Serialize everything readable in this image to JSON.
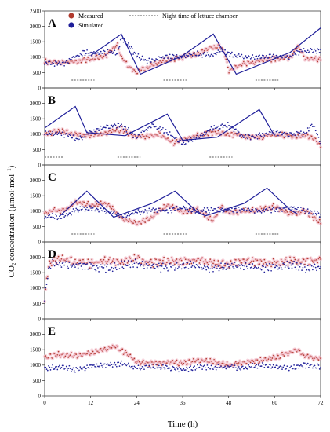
{
  "colors": {
    "measured": "#b03a2e",
    "measured_band": "#f3b8c7",
    "simulated": "#1f1f9a",
    "night_bar": "#555555",
    "frame": "#333333"
  },
  "legend": {
    "measured": "Measured",
    "simulated": "Simulated",
    "night": "Night time of lettuce chamber"
  },
  "axes": {
    "xlabel": "Time (h)",
    "ylabel_pre": "CO",
    "ylabel_sub": "2",
    "ylabel_mid": " concentration (μmol·mol",
    "ylabel_sup": "−1",
    "ylabel_post": ")"
  },
  "chart_data": {
    "type": "line",
    "xlim": [
      0,
      72
    ],
    "ylim": [
      0,
      2500
    ],
    "x_ticks": [
      "0",
      "12",
      "24",
      "36",
      "48",
      "60",
      "72"
    ],
    "y_ticks": [
      "0",
      "500",
      "1000",
      "1500",
      "2000",
      "2500"
    ],
    "panels": [
      {
        "label": "A",
        "night_periods": [
          [
            7,
            13
          ],
          [
            31,
            37
          ],
          [
            55,
            61
          ]
        ],
        "series": [
          {
            "name": "Measured",
            "style": "dots",
            "x": [
              0,
              4,
              8,
              12,
              16,
              19,
              20,
              22,
              24,
              28,
              32,
              36,
              40,
              42,
              44,
              46,
              47,
              48,
              50,
              56,
              60,
              64,
              66,
              68,
              72
            ],
            "y": [
              850,
              820,
              850,
              950,
              1050,
              1400,
              1000,
              700,
              500,
              750,
              900,
              1000,
              1100,
              1250,
              1300,
              1350,
              1100,
              550,
              700,
              900,
              950,
              1000,
              1350,
              950,
              900
            ]
          },
          {
            "name": "Simulated",
            "style": "dots",
            "x": [
              0,
              5,
              7,
              10,
              14,
              17,
              19,
              20,
              24,
              26,
              28,
              32,
              36,
              40,
              44,
              46,
              48,
              52,
              56,
              60,
              64,
              66,
              68,
              72
            ],
            "y": [
              800,
              780,
              950,
              1150,
              1100,
              1200,
              1100,
              1650,
              1050,
              900,
              900,
              1000,
              1050,
              1100,
              1050,
              1200,
              1100,
              1000,
              1000,
              1050,
              1000,
              1150,
              1200,
              1200
            ]
          },
          {
            "name": "Simulated",
            "style": "line",
            "x": [
              12,
              20,
              25,
              36,
              44,
              50,
              64,
              72
            ],
            "y": [
              1050,
              1750,
              450,
              1050,
              1750,
              450,
              1150,
              1950
            ]
          }
        ]
      },
      {
        "label": "B",
        "night_periods": [
          [
            0,
            5
          ],
          [
            19,
            25
          ],
          [
            43,
            49
          ]
        ],
        "series": [
          {
            "name": "Measured",
            "style": "dots",
            "x": [
              0,
              4,
              8,
              12,
              16,
              20,
              24,
              28,
              30,
              32,
              34,
              36,
              40,
              44,
              48,
              52,
              56,
              60,
              64,
              68,
              70,
              72
            ],
            "y": [
              1000,
              1100,
              1000,
              950,
              1050,
              1150,
              900,
              950,
              1000,
              850,
              700,
              850,
              950,
              1050,
              1000,
              950,
              900,
              1000,
              950,
              950,
              900,
              600
            ]
          },
          {
            "name": "Simulated",
            "style": "dots",
            "x": [
              0,
              4,
              8,
              10,
              12,
              16,
              20,
              24,
              26,
              28,
              32,
              36,
              40,
              44,
              48,
              52,
              56,
              60,
              64,
              68,
              70,
              72
            ],
            "y": [
              1000,
              1050,
              850,
              900,
              1050,
              1250,
              1300,
              900,
              1100,
              1300,
              1050,
              700,
              900,
              1200,
              1300,
              900,
              950,
              1050,
              1000,
              1000,
              1350,
              700
            ]
          },
          {
            "name": "Simulated",
            "style": "line",
            "x": [
              0,
              8,
              11,
              21,
              32,
              36,
              45,
              56,
              60
            ],
            "y": [
              1200,
              1900,
              1050,
              950,
              1650,
              800,
              900,
              1800,
              950
            ]
          }
        ]
      },
      {
        "label": "C",
        "night_periods": [
          [
            7,
            13
          ],
          [
            31,
            37
          ],
          [
            55,
            61
          ]
        ],
        "series": [
          {
            "name": "Measured",
            "style": "dots",
            "x": [
              0,
              2,
              4,
              6,
              8,
              12,
              16,
              18,
              20,
              24,
              28,
              32,
              34,
              36,
              40,
              44,
              46,
              48,
              52,
              56,
              60,
              64,
              68,
              72
            ],
            "y": [
              900,
              1050,
              1000,
              1100,
              1300,
              1200,
              1250,
              1050,
              750,
              600,
              800,
              1200,
              1100,
              950,
              1050,
              700,
              1150,
              950,
              1000,
              1050,
              1150,
              900,
              1000,
              600
            ]
          },
          {
            "name": "Simulated",
            "style": "dots",
            "x": [
              0,
              2,
              4,
              6,
              8,
              12,
              16,
              20,
              24,
              28,
              32,
              36,
              40,
              44,
              48,
              52,
              56,
              60,
              64,
              68,
              72
            ],
            "y": [
              800,
              850,
              800,
              900,
              1050,
              1100,
              1000,
              850,
              950,
              1050,
              1000,
              1100,
              1000,
              1050,
              1000,
              1050,
              1000,
              1050,
              1100,
              1000,
              900
            ]
          },
          {
            "name": "Simulated",
            "style": "line",
            "x": [
              4,
              11,
              16,
              18,
              28,
              34,
              40,
              42,
              52,
              58,
              64,
              66
            ],
            "y": [
              850,
              1650,
              1050,
              800,
              1250,
              1650,
              950,
              850,
              1250,
              1750,
              1050,
              900
            ]
          }
        ]
      },
      {
        "label": "D",
        "night_periods": [],
        "series": [
          {
            "name": "Measured",
            "style": "dots",
            "x": [
              0,
              0.5,
              1,
              2,
              4,
              8,
              12,
              16,
              20,
              24,
              28,
              32,
              36,
              40,
              44,
              48,
              52,
              56,
              60,
              64,
              68,
              72
            ],
            "y": [
              500,
              1300,
              1700,
              1900,
              1950,
              1850,
              1800,
              1900,
              1850,
              1950,
              1800,
              1900,
              1850,
              1900,
              1800,
              1750,
              1900,
              1850,
              1800,
              1900,
              1850,
              1900
            ]
          },
          {
            "name": "Simulated",
            "style": "dots",
            "x": [
              0,
              0.5,
              1,
              2,
              4,
              8,
              12,
              16,
              20,
              24,
              28,
              32,
              36,
              40,
              44,
              48,
              52,
              56,
              60,
              64,
              68,
              72
            ],
            "y": [
              550,
              1200,
              1600,
              1850,
              1800,
              1750,
              1700,
              1650,
              1750,
              1800,
              1700,
              1650,
              1750,
              1700,
              1650,
              1700,
              1750,
              1650,
              1700,
              1750,
              1650,
              1700
            ]
          }
        ]
      },
      {
        "label": "E",
        "night_periods": [],
        "series": [
          {
            "name": "Measured",
            "style": "dots",
            "x": [
              0,
              4,
              8,
              12,
              16,
              18,
              20,
              24,
              28,
              32,
              36,
              40,
              44,
              48,
              52,
              56,
              60,
              64,
              66,
              68,
              72
            ],
            "y": [
              1250,
              1350,
              1300,
              1400,
              1500,
              1600,
              1500,
              1100,
              1050,
              1100,
              1050,
              1150,
              1100,
              1000,
              1100,
              1150,
              1250,
              1400,
              1500,
              1300,
              1200
            ]
          },
          {
            "name": "Simulated",
            "style": "dots",
            "x": [
              0,
              4,
              8,
              12,
              16,
              20,
              24,
              28,
              32,
              36,
              40,
              44,
              48,
              52,
              56,
              60,
              64,
              68,
              72
            ],
            "y": [
              900,
              950,
              850,
              950,
              1000,
              1050,
              900,
              950,
              900,
              850,
              950,
              900,
              950,
              900,
              1000,
              950,
              900,
              1000,
              950
            ]
          }
        ]
      }
    ]
  }
}
